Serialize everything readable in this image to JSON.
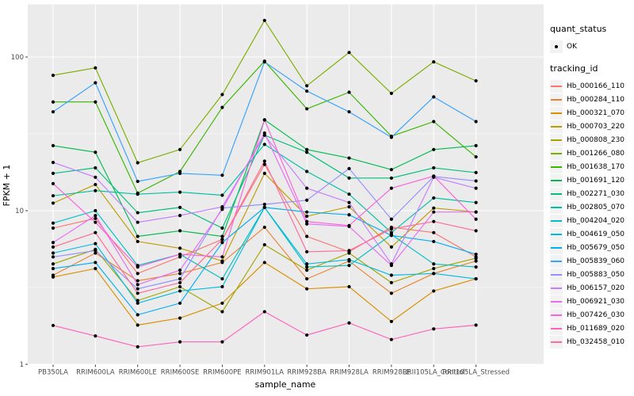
{
  "chart_data": {
    "type": "line",
    "title": "",
    "xlabel": "sample_name",
    "ylabel": "FPKM + 1",
    "x_categories": [
      "PB350LA",
      "RRIM600LA",
      "RRIM600LE",
      "RRIM600SE",
      "RRIM600PE",
      "RRIM901LA",
      "RRIM928BA",
      "RRIM928LA",
      "RRIM928LE",
      "RRII105LA_Control",
      "RRII105LA_Stressed"
    ],
    "y_scale": "log10",
    "y_ticks": [
      1,
      10,
      100
    ],
    "y_minor_ticks": [
      3.1623,
      31.623
    ],
    "ylim": [
      1,
      220
    ],
    "grid": "white major and minor gridlines on grey panel",
    "legend_position": "right",
    "panel_bg": "#EBEBEB",
    "grid_color": "#FFFFFF",
    "tick_label_color": "#4D4D4D",
    "axis_title_color": "#000000",
    "point_color": "#000000",
    "legend_key_bg": "#F2F2F2",
    "legend": {
      "quant_status_title": "quant_status",
      "quant_status_items": [
        {
          "label": "OK",
          "marker": "black-point"
        }
      ],
      "tracking_title": "tracking_id"
    },
    "series": [
      {
        "name": "Hb_000166_110",
        "color": "#F8766D",
        "values": [
          7.7,
          8.9,
          3.9,
          5.0,
          6.5,
          20,
          6.8,
          5.4,
          7.8,
          7.2,
          5.0
        ]
      },
      {
        "name": "Hb_000284_110",
        "color": "#EA8331",
        "values": [
          3.8,
          5.3,
          3.5,
          3.9,
          4.6,
          7.8,
          3.6,
          4.7,
          2.9,
          3.9,
          4.7
        ]
      },
      {
        "name": "Hb_000321_070",
        "color": "#D89000",
        "values": [
          3.7,
          4.2,
          1.8,
          2.0,
          2.5,
          4.6,
          3.1,
          3.2,
          1.9,
          3.0,
          3.6
        ]
      },
      {
        "name": "Hb_000703_220",
        "color": "#C09B00",
        "values": [
          11.2,
          14.8,
          6.3,
          5.7,
          4.7,
          17.5,
          9.2,
          10.6,
          5.8,
          10.4,
          9.8
        ]
      },
      {
        "name": "Hb_000808_230",
        "color": "#A3A500",
        "values": [
          4.5,
          5.6,
          2.6,
          3.2,
          2.2,
          6.0,
          4.1,
          5.3,
          3.4,
          4.2,
          4.9
        ]
      },
      {
        "name": "Hb_001266_080",
        "color": "#7CAE00",
        "values": [
          76,
          85,
          20.5,
          25,
          57,
          173,
          65,
          107,
          58,
          93,
          70
        ]
      },
      {
        "name": "Hb_001638_170",
        "color": "#39B600",
        "values": [
          51,
          51,
          13,
          18,
          47,
          94,
          46,
          59,
          30.5,
          38,
          22.4
        ]
      },
      {
        "name": "Hb_001691_120",
        "color": "#00BB4E",
        "values": [
          26.5,
          24,
          6.8,
          7.4,
          6.8,
          39,
          25,
          22,
          18.5,
          25,
          26.5
        ]
      },
      {
        "name": "Hb_002271_030",
        "color": "#00BF7D",
        "values": [
          17.5,
          19,
          9.7,
          10.5,
          7.7,
          31,
          24,
          16.3,
          16.3,
          19,
          17.7
        ]
      },
      {
        "name": "Hb_002805_070",
        "color": "#00C1A3",
        "values": [
          12.5,
          13.5,
          12.8,
          13.2,
          12.6,
          27,
          18,
          12.8,
          7.2,
          12.1,
          11.3
        ]
      },
      {
        "name": "Hb_004204_020",
        "color": "#00BFC4",
        "values": [
          8.3,
          10,
          4.4,
          5.2,
          3.6,
          10.5,
          4.3,
          4.4,
          7.0,
          4.5,
          4.3
        ]
      },
      {
        "name": "Hb_004619_050",
        "color": "#00BAE0",
        "values": [
          5.3,
          6.1,
          2.5,
          3.0,
          3.2,
          10.5,
          4.5,
          4.8,
          3.8,
          3.9,
          3.6
        ]
      },
      {
        "name": "Hb_005679_050",
        "color": "#00B0F6",
        "values": [
          4.2,
          4.6,
          2.1,
          2.5,
          6.2,
          10.5,
          9.8,
          9.4,
          6.9,
          6.3,
          5.2
        ]
      },
      {
        "name": "Hb_005839_060",
        "color": "#35A2FF",
        "values": [
          44,
          68,
          15.5,
          17.5,
          17,
          93,
          60,
          44,
          30,
          55,
          38
        ]
      },
      {
        "name": "Hb_005883_050",
        "color": "#9590FF",
        "values": [
          5.0,
          5.5,
          3.1,
          3.6,
          10.4,
          11,
          11.7,
          18.8,
          8.8,
          16.7,
          15.6
        ]
      },
      {
        "name": "Hb_006157_020",
        "color": "#C77CFF",
        "values": [
          20.6,
          16.5,
          8.4,
          9.3,
          10.6,
          31,
          14,
          11.3,
          4.5,
          16.5,
          14
        ]
      },
      {
        "name": "Hb_006921_030",
        "color": "#E76BF3",
        "values": [
          6.2,
          9.3,
          3.3,
          4.1,
          10.2,
          32,
          8.2,
          7.9,
          4.4,
          9.8,
          9.8
        ]
      },
      {
        "name": "Hb_007426_030",
        "color": "#FA62DB",
        "values": [
          15.0,
          8.4,
          4.3,
          5.2,
          5.0,
          39,
          8.5,
          8.0,
          14,
          16.8,
          8.8
        ]
      },
      {
        "name": "Hb_011689_020",
        "color": "#FF62BC",
        "values": [
          1.79,
          1.53,
          1.3,
          1.4,
          1.4,
          2.2,
          1.55,
          1.86,
          1.45,
          1.7,
          1.8
        ]
      },
      {
        "name": "Hb_032458_010",
        "color": "#FF6A98",
        "values": [
          5.8,
          7.2,
          2.9,
          3.4,
          6.5,
          21,
          5.4,
          5.5,
          7.6,
          8.5,
          7.4
        ]
      }
    ]
  }
}
